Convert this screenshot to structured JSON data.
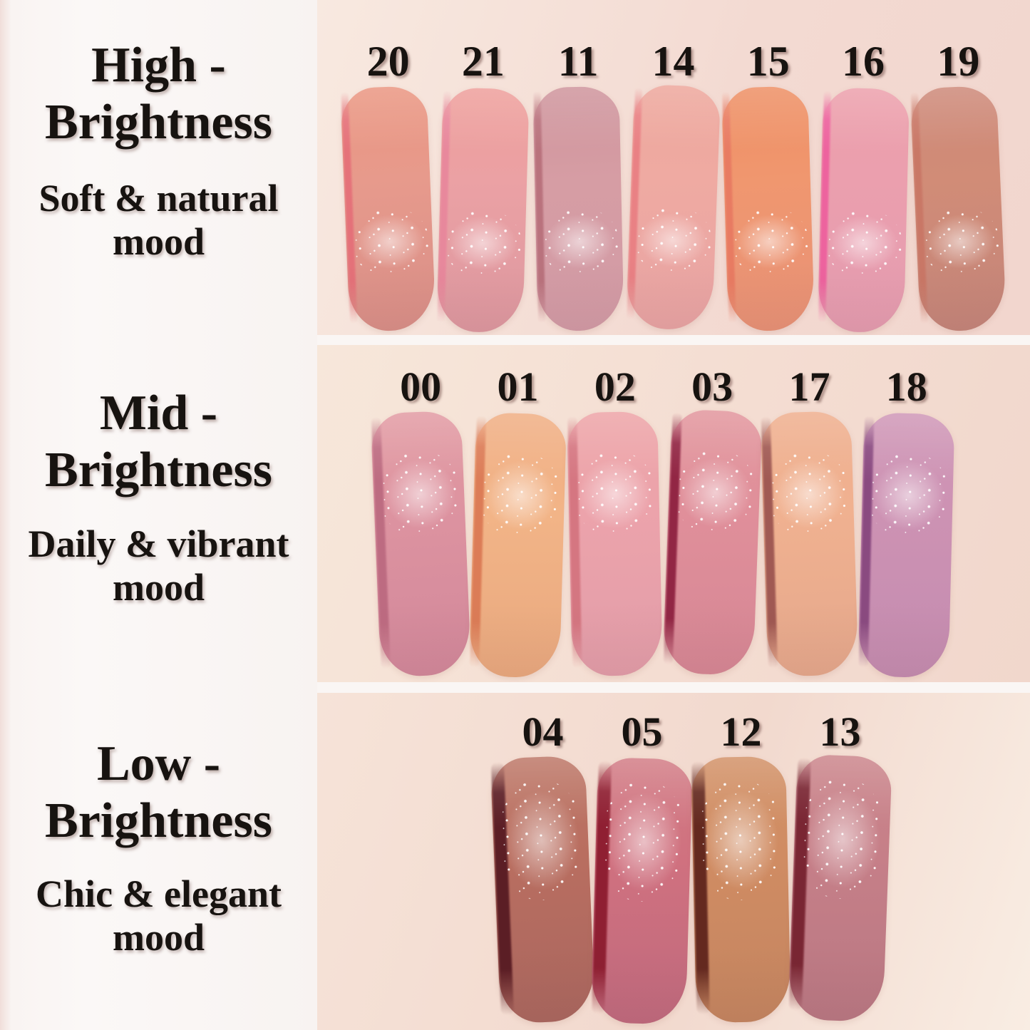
{
  "page": {
    "background": "#faf6f4",
    "text_color": "#171310"
  },
  "rows": [
    {
      "title_line1": "High -",
      "title_line2": "Brightness",
      "subtitle_line1": "Soft & natural",
      "subtitle_line2": "mood",
      "panel": {
        "skin_top": "#f8e9e0",
        "skin": "#f3dad2",
        "skin_deep": "#f2d6ce"
      },
      "swatches": [
        {
          "num": "20",
          "top": "#ea9580",
          "body": "#e79a8c",
          "bottom": "#d98f88",
          "edge": "#e57079"
        },
        {
          "num": "21",
          "top": "#ee9e9a",
          "body": "#eba1a4",
          "bottom": "#dd98a0",
          "edge": "#e8879c"
        },
        {
          "num": "11",
          "top": "#ce939b",
          "body": "#d69da4",
          "bottom": "#d29ba6",
          "edge": "#b8707b"
        },
        {
          "num": "14",
          "top": "#eda69b",
          "body": "#efaaa2",
          "bottom": "#e8a4a4",
          "edge": "#e97f83"
        },
        {
          "num": "15",
          "top": "#ee8e63",
          "body": "#f0976f",
          "bottom": "#e89277",
          "edge": "#e87a62"
        },
        {
          "num": "16",
          "top": "#ec9fab",
          "body": "#eb9fae",
          "bottom": "#e49cb0",
          "edge": "#ee609e"
        },
        {
          "num": "19",
          "top": "#cd8878",
          "body": "#d18c77",
          "bottom": "#c4857a",
          "edge": "#c97766"
        }
      ]
    },
    {
      "title_line1": "Mid -",
      "title_line2": "Brightness",
      "subtitle_line1": "Daily & vibrant",
      "subtitle_line2": "mood",
      "panel": {
        "skin_top": "#f7e7da",
        "skin": "#f4ddd2",
        "skin_deep": "#f1d7cc"
      },
      "swatches": [
        {
          "num": "00",
          "top": "#e29aa2",
          "body": "#dd93a0",
          "bottom": "#d2889b",
          "edge": "#bc6a80"
        },
        {
          "num": "01",
          "top": "#f0ad82",
          "body": "#f2b487",
          "bottom": "#e9a97f",
          "edge": "#db7a55"
        },
        {
          "num": "02",
          "top": "#eda3a6",
          "body": "#eca3ab",
          "bottom": "#e29da9",
          "edge": "#d4747f"
        },
        {
          "num": "03",
          "top": "#e2959c",
          "body": "#e08f9a",
          "bottom": "#d68795",
          "edge": "#8e2140"
        },
        {
          "num": "17",
          "top": "#efae8d",
          "body": "#f0b190",
          "bottom": "#e5a88c",
          "edge": "#9c5550"
        },
        {
          "num": "18",
          "top": "#cf96b6",
          "body": "#cd92b3",
          "bottom": "#c48cb0",
          "edge": "#87477e"
        }
      ]
    },
    {
      "title_line1": "Low -",
      "title_line2": "Brightness",
      "subtitle_line1": "Chic & elegant",
      "subtitle_line2": "mood",
      "panel": {
        "skin_top": "#f6e3d8",
        "skin": "#f2d9ce",
        "skin_deep": "#f9ede3"
      },
      "swatches": [
        {
          "num": "04",
          "top": "#bd7767",
          "body": "#b96e60",
          "bottom": "#aa675f",
          "edge": "#571a22"
        },
        {
          "num": "05",
          "top": "#d27c85",
          "body": "#d0717f",
          "bottom": "#c06a7e",
          "edge": "#8c1b2e"
        },
        {
          "num": "12",
          "top": "#d29167",
          "body": "#d08c63",
          "bottom": "#c48560",
          "edge": "#5f241c"
        },
        {
          "num": "13",
          "top": "#cb858b",
          "body": "#c67f88",
          "bottom": "#b97883",
          "edge": "#76222f"
        }
      ]
    }
  ]
}
